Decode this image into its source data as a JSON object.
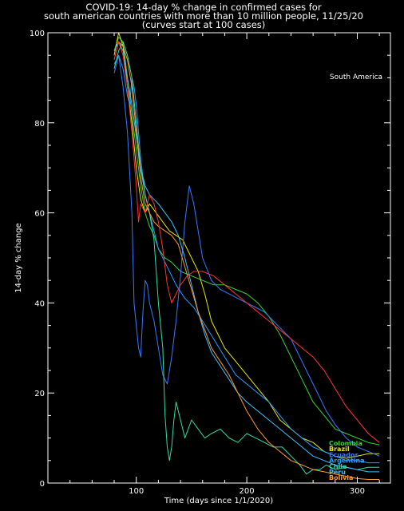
{
  "chart_data": {
    "type": "line",
    "title": "COVID-19: 14-day % change in confirmed cases for",
    "subtitle": [
      "south american countries with more than 10 million people, 11/25/20",
      "(curves start at 100 cases)"
    ],
    "xlabel": "Time (days since 1/1/2020)",
    "ylabel": "14-day % change",
    "annotation": "South America",
    "xlim": [
      20,
      330
    ],
    "ylim": [
      0,
      100
    ],
    "xticks": [
      100,
      200,
      300
    ],
    "yticks": [
      0,
      20,
      40,
      60,
      80,
      100
    ],
    "grid": false,
    "legend": "bottom-right, labels at curve ends",
    "colors": {
      "background": "#000000",
      "axes": "#ffffff"
    },
    "series": [
      {
        "name": "Colombia",
        "color": "#36d236",
        "points": [
          [
            80,
            96
          ],
          [
            84,
            99
          ],
          [
            88,
            98
          ],
          [
            92,
            90
          ],
          [
            96,
            82
          ],
          [
            100,
            74
          ],
          [
            104,
            66
          ],
          [
            108,
            60
          ],
          [
            112,
            57
          ],
          [
            116,
            55
          ],
          [
            120,
            52
          ],
          [
            126,
            50
          ],
          [
            132,
            49
          ],
          [
            140,
            47
          ],
          [
            150,
            46
          ],
          [
            160,
            45
          ],
          [
            170,
            44
          ],
          [
            180,
            44
          ],
          [
            190,
            43
          ],
          [
            200,
            42
          ],
          [
            210,
            40
          ],
          [
            220,
            37
          ],
          [
            230,
            33
          ],
          [
            240,
            28
          ],
          [
            250,
            23
          ],
          [
            260,
            18
          ],
          [
            270,
            15
          ],
          [
            280,
            12
          ],
          [
            290,
            11
          ],
          [
            300,
            10
          ],
          [
            310,
            9
          ],
          [
            320,
            8.5
          ]
        ]
      },
      {
        "name": "Brazil",
        "color": "#e6e61a",
        "points": [
          [
            80,
            95
          ],
          [
            84,
            100
          ],
          [
            88,
            97
          ],
          [
            92,
            88
          ],
          [
            96,
            80
          ],
          [
            100,
            70
          ],
          [
            104,
            63
          ],
          [
            108,
            60
          ],
          [
            112,
            62
          ],
          [
            118,
            60
          ],
          [
            124,
            58
          ],
          [
            130,
            56
          ],
          [
            136,
            55
          ],
          [
            142,
            54
          ],
          [
            150,
            50
          ],
          [
            156,
            47
          ],
          [
            162,
            42
          ],
          [
            168,
            36
          ],
          [
            174,
            33
          ],
          [
            180,
            30
          ],
          [
            190,
            27
          ],
          [
            200,
            24
          ],
          [
            210,
            21
          ],
          [
            220,
            18
          ],
          [
            230,
            14
          ],
          [
            240,
            12
          ],
          [
            250,
            10
          ],
          [
            260,
            9
          ],
          [
            270,
            7
          ],
          [
            280,
            6
          ],
          [
            290,
            5.5
          ],
          [
            300,
            6
          ],
          [
            310,
            6.5
          ],
          [
            320,
            6.5
          ]
        ]
      },
      {
        "name": "Ecuador",
        "color": "#3a78ff",
        "points": [
          [
            80,
            91
          ],
          [
            84,
            95
          ],
          [
            88,
            88
          ],
          [
            92,
            78
          ],
          [
            96,
            60
          ],
          [
            98,
            40
          ],
          [
            100,
            35
          ],
          [
            102,
            30
          ],
          [
            104,
            28
          ],
          [
            106,
            38
          ],
          [
            108,
            45
          ],
          [
            110,
            44
          ],
          [
            112,
            40
          ],
          [
            116,
            36
          ],
          [
            120,
            30
          ],
          [
            124,
            24
          ],
          [
            128,
            22
          ],
          [
            132,
            28
          ],
          [
            136,
            36
          ],
          [
            140,
            46
          ],
          [
            144,
            58
          ],
          [
            148,
            66
          ],
          [
            152,
            62
          ],
          [
            156,
            56
          ],
          [
            160,
            50
          ],
          [
            168,
            45
          ],
          [
            176,
            43
          ],
          [
            184,
            42
          ],
          [
            192,
            41
          ],
          [
            200,
            40
          ],
          [
            208,
            39
          ],
          [
            216,
            38
          ],
          [
            224,
            36
          ],
          [
            232,
            34
          ],
          [
            240,
            32
          ],
          [
            248,
            28
          ],
          [
            256,
            24
          ],
          [
            264,
            20
          ],
          [
            272,
            16
          ],
          [
            280,
            13
          ],
          [
            290,
            10
          ],
          [
            300,
            8
          ],
          [
            310,
            7
          ],
          [
            320,
            6
          ]
        ]
      },
      {
        "name": "Argentina",
        "color": "#2a9cff",
        "points": [
          [
            80,
            93
          ],
          [
            84,
            95
          ],
          [
            88,
            92
          ],
          [
            92,
            86
          ],
          [
            94,
            84
          ],
          [
            96,
            90
          ],
          [
            98,
            88
          ],
          [
            100,
            84
          ],
          [
            104,
            72
          ],
          [
            108,
            64
          ],
          [
            112,
            60
          ],
          [
            116,
            56
          ],
          [
            120,
            52
          ],
          [
            128,
            48
          ],
          [
            136,
            44
          ],
          [
            144,
            41
          ],
          [
            152,
            39
          ],
          [
            160,
            36
          ],
          [
            170,
            32
          ],
          [
            180,
            28
          ],
          [
            190,
            24
          ],
          [
            200,
            22
          ],
          [
            210,
            20
          ],
          [
            220,
            18
          ],
          [
            230,
            15
          ],
          [
            240,
            12
          ],
          [
            250,
            10
          ],
          [
            260,
            8
          ],
          [
            270,
            7
          ],
          [
            280,
            6
          ],
          [
            290,
            5
          ],
          [
            300,
            5
          ],
          [
            310,
            4.5
          ],
          [
            320,
            4.5
          ]
        ]
      },
      {
        "name": "Chile",
        "color": "#33ddaa",
        "points": [
          [
            80,
            92
          ],
          [
            84,
            96
          ],
          [
            88,
            98
          ],
          [
            92,
            95
          ],
          [
            96,
            90
          ],
          [
            100,
            80
          ],
          [
            104,
            70
          ],
          [
            108,
            64
          ],
          [
            112,
            60
          ],
          [
            116,
            54
          ],
          [
            120,
            40
          ],
          [
            124,
            30
          ],
          [
            126,
            15
          ],
          [
            128,
            8
          ],
          [
            130,
            5
          ],
          [
            132,
            8
          ],
          [
            134,
            14
          ],
          [
            136,
            18
          ],
          [
            140,
            14
          ],
          [
            144,
            10
          ],
          [
            150,
            14
          ],
          [
            156,
            12
          ],
          [
            162,
            10
          ],
          [
            168,
            11
          ],
          [
            176,
            12
          ],
          [
            184,
            10
          ],
          [
            192,
            9
          ],
          [
            200,
            11
          ],
          [
            208,
            10
          ],
          [
            216,
            9
          ],
          [
            224,
            8
          ],
          [
            232,
            8
          ],
          [
            240,
            6
          ],
          [
            248,
            4
          ],
          [
            254,
            2
          ],
          [
            260,
            3
          ],
          [
            266,
            3
          ],
          [
            272,
            4
          ],
          [
            280,
            3
          ],
          [
            290,
            3.5
          ],
          [
            300,
            3
          ],
          [
            310,
            3.5
          ],
          [
            320,
            3.5
          ]
        ]
      },
      {
        "name": "Peru",
        "color": "#44c0ff",
        "points": [
          [
            80,
            96
          ],
          [
            84,
            98
          ],
          [
            88,
            96
          ],
          [
            92,
            90
          ],
          [
            96,
            84
          ],
          [
            100,
            77
          ],
          [
            104,
            70
          ],
          [
            108,
            66
          ],
          [
            112,
            64
          ],
          [
            116,
            63
          ],
          [
            120,
            62
          ],
          [
            126,
            60
          ],
          [
            132,
            58
          ],
          [
            138,
            55
          ],
          [
            144,
            50
          ],
          [
            150,
            44
          ],
          [
            156,
            38
          ],
          [
            162,
            33
          ],
          [
            168,
            29
          ],
          [
            176,
            26
          ],
          [
            184,
            23
          ],
          [
            192,
            20
          ],
          [
            200,
            18
          ],
          [
            210,
            16
          ],
          [
            220,
            14
          ],
          [
            230,
            12
          ],
          [
            240,
            10
          ],
          [
            250,
            8
          ],
          [
            260,
            6
          ],
          [
            270,
            5
          ],
          [
            280,
            4
          ],
          [
            290,
            3.5
          ],
          [
            300,
            3
          ],
          [
            310,
            2.5
          ],
          [
            320,
            2.5
          ]
        ]
      },
      {
        "name": "Bolivia",
        "color": "#ff9933",
        "points": [
          [
            80,
            94
          ],
          [
            84,
            98
          ],
          [
            88,
            97
          ],
          [
            92,
            94
          ],
          [
            96,
            88
          ],
          [
            100,
            78
          ],
          [
            104,
            68
          ],
          [
            108,
            62
          ],
          [
            112,
            60
          ],
          [
            116,
            58
          ],
          [
            120,
            57
          ],
          [
            126,
            56
          ],
          [
            132,
            55
          ],
          [
            138,
            53
          ],
          [
            144,
            48
          ],
          [
            150,
            43
          ],
          [
            156,
            38
          ],
          [
            162,
            34
          ],
          [
            168,
            30
          ],
          [
            176,
            27
          ],
          [
            184,
            24
          ],
          [
            192,
            20
          ],
          [
            200,
            16
          ],
          [
            210,
            12
          ],
          [
            220,
            9
          ],
          [
            230,
            7
          ],
          [
            240,
            5
          ],
          [
            250,
            4
          ],
          [
            260,
            3
          ],
          [
            270,
            2.5
          ],
          [
            280,
            2
          ],
          [
            290,
            1.5
          ],
          [
            300,
            1
          ],
          [
            310,
            0.8
          ],
          [
            320,
            0.8
          ]
        ]
      },
      {
        "name": "",
        "color": "#ff3333",
        "points": [
          [
            80,
            94
          ],
          [
            84,
            98
          ],
          [
            88,
            95
          ],
          [
            92,
            88
          ],
          [
            96,
            78
          ],
          [
            100,
            66
          ],
          [
            102,
            58
          ],
          [
            104,
            62
          ],
          [
            108,
            60
          ],
          [
            112,
            64
          ],
          [
            116,
            62
          ],
          [
            120,
            58
          ],
          [
            124,
            52
          ],
          [
            128,
            44
          ],
          [
            132,
            40
          ],
          [
            136,
            42
          ],
          [
            140,
            44
          ],
          [
            146,
            46
          ],
          [
            152,
            47
          ],
          [
            160,
            47
          ],
          [
            170,
            46
          ],
          [
            180,
            44
          ],
          [
            190,
            42
          ],
          [
            200,
            40
          ],
          [
            210,
            38
          ],
          [
            220,
            36
          ],
          [
            230,
            34
          ],
          [
            240,
            32
          ],
          [
            250,
            30
          ],
          [
            260,
            28
          ],
          [
            270,
            25
          ],
          [
            280,
            21
          ],
          [
            290,
            17
          ],
          [
            300,
            14
          ],
          [
            310,
            11
          ],
          [
            320,
            9
          ]
        ]
      }
    ]
  }
}
